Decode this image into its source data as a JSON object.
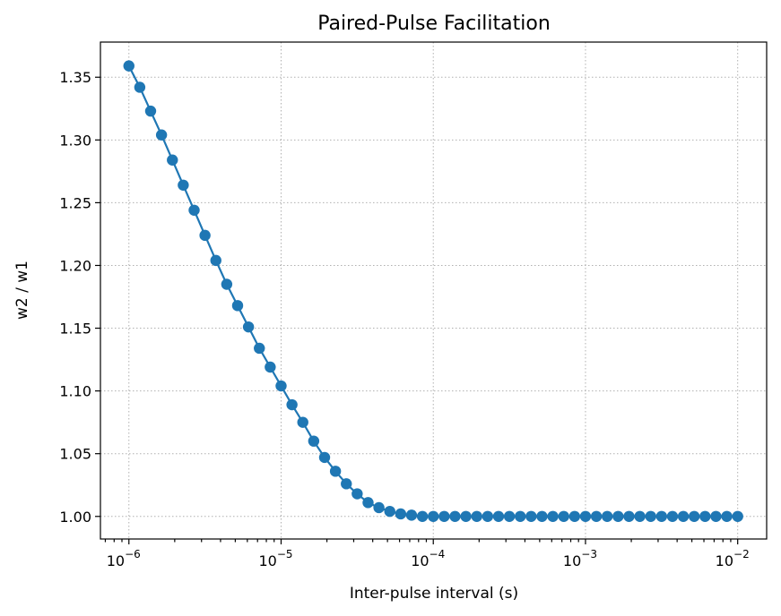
{
  "chart_data": {
    "type": "line",
    "title": "Paired-Pulse Facilitation",
    "xlabel": "Inter-pulse interval (s)",
    "ylabel": "w2 / w1",
    "x_scale": "log",
    "xlim": [
      6.5e-07,
      0.0155
    ],
    "ylim": [
      0.982,
      1.378
    ],
    "grid": true,
    "color": "#1f77b4",
    "marker": "circle",
    "x_ticks": [
      {
        "value": 1e-06,
        "base": "10",
        "exp": "−6"
      },
      {
        "value": 1e-05,
        "base": "10",
        "exp": "−5"
      },
      {
        "value": 0.0001,
        "base": "10",
        "exp": "−4"
      },
      {
        "value": 0.001,
        "base": "10",
        "exp": "−3"
      },
      {
        "value": 0.01,
        "base": "10",
        "exp": "−2"
      }
    ],
    "y_ticks": [
      {
        "value": 1.0,
        "label": "1.00"
      },
      {
        "value": 1.05,
        "label": "1.05"
      },
      {
        "value": 1.1,
        "label": "1.10"
      },
      {
        "value": 1.15,
        "label": "1.15"
      },
      {
        "value": 1.2,
        "label": "1.20"
      },
      {
        "value": 1.25,
        "label": "1.25"
      },
      {
        "value": 1.3,
        "label": "1.30"
      },
      {
        "value": 1.35,
        "label": "1.35"
      }
    ],
    "series": [
      {
        "x": [
          1e-06,
          1.179e-06,
          1.389e-06,
          1.638e-06,
          1.931e-06,
          2.276e-06,
          2.683e-06,
          3.162e-06,
          3.728e-06,
          4.394e-06,
          5.179e-06,
          6.105e-06,
          7.197e-06,
          8.483e-06,
          1e-05,
          1.179e-05,
          1.389e-05,
          1.638e-05,
          1.931e-05,
          2.276e-05,
          2.683e-05,
          3.162e-05,
          3.728e-05,
          4.394e-05,
          5.179e-05,
          6.105e-05,
          7.197e-05,
          8.483e-05,
          0.0001,
          0.0001179,
          0.0001389,
          0.0001638,
          0.0001931,
          0.0002276,
          0.0002683,
          0.0003162,
          0.0003728,
          0.0004394,
          0.0005179,
          0.0006105,
          0.0007197,
          0.0008483,
          0.001,
          0.001179,
          0.001389,
          0.001638,
          0.001931,
          0.002276,
          0.002683,
          0.003162,
          0.003728,
          0.004394,
          0.005179,
          0.006105,
          0.007197,
          0.008483,
          0.01
        ],
        "y": [
          1.359,
          1.342,
          1.323,
          1.304,
          1.284,
          1.264,
          1.244,
          1.224,
          1.204,
          1.185,
          1.168,
          1.151,
          1.134,
          1.119,
          1.104,
          1.089,
          1.075,
          1.06,
          1.047,
          1.036,
          1.026,
          1.018,
          1.011,
          1.007,
          1.004,
          1.002,
          1.001,
          1.0,
          1.0,
          1.0,
          1.0,
          1.0,
          1.0,
          1.0,
          1.0,
          1.0,
          1.0,
          1.0,
          1.0,
          1.0,
          1.0,
          1.0,
          1.0,
          1.0,
          1.0,
          1.0,
          1.0,
          1.0,
          1.0,
          1.0,
          1.0,
          1.0,
          1.0,
          1.0,
          1.0,
          1.0,
          1.0
        ]
      }
    ]
  }
}
